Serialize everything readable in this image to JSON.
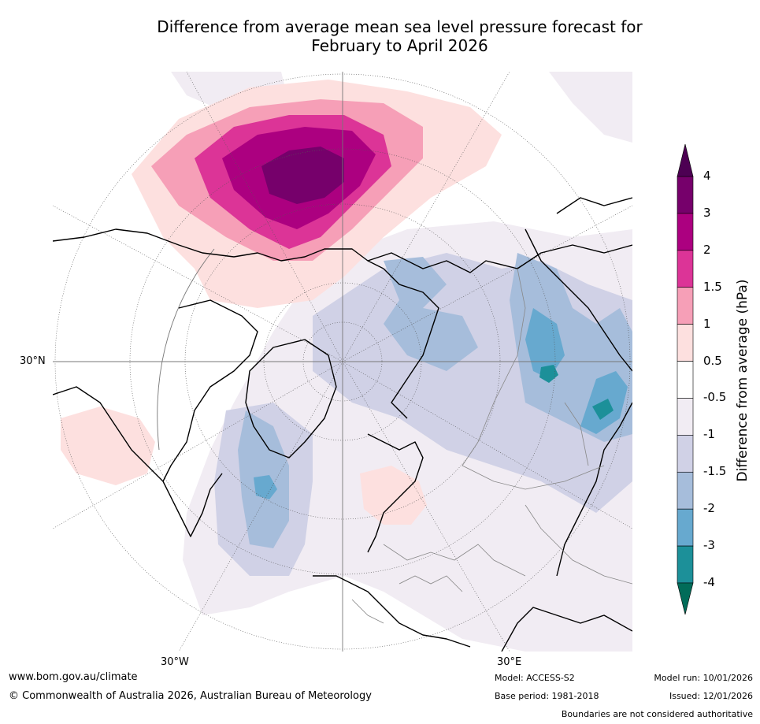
{
  "title": {
    "line1": "Difference from average mean sea level pressure forecast for",
    "line2": "February to April 2026"
  },
  "map": {
    "lat_label": "30°N",
    "lon_west_label": "30°W",
    "lon_east_label": "30°E",
    "background": "#ffffff"
  },
  "colorbar": {
    "title": "Difference from average (hPa)",
    "tick_labels": [
      "4",
      "3",
      "2",
      "1.5",
      "1",
      "0.5",
      "-0.5",
      "-1",
      "-1.5",
      "-2",
      "-3",
      "-4"
    ],
    "bins_top_to_bottom": [
      {
        "range": "3 to 4",
        "color": "#76006b"
      },
      {
        "range": "2 to 3",
        "color": "#ac0080"
      },
      {
        "range": "1.5 to 2",
        "color": "#dc3497"
      },
      {
        "range": "1 to 1.5",
        "color": "#f69fb7"
      },
      {
        "range": "0.5 to 1",
        "color": "#fde0df"
      },
      {
        "range": "-0.5 to 0.5",
        "color": "#ffffff"
      },
      {
        "range": "-1 to -0.5",
        "color": "#f1ecf3"
      },
      {
        "range": "-1.5 to -1",
        "color": "#d0d1e6"
      },
      {
        "range": "-2 to -1.5",
        "color": "#a6bddb"
      },
      {
        "range": "-3 to -2",
        "color": "#67a9cf"
      },
      {
        "range": "-4 to -3",
        "color": "#1c9099"
      }
    ],
    "over_color": "#4d0053",
    "under_color": "#016c59"
  },
  "footer": {
    "url": "www.bom.gov.au/climate",
    "copyright": "© Commonwealth of Australia 2026, Australian Bureau of Meteorology",
    "model": "Model: ACCESS-S2",
    "base_period": "Base period: 1981-2018",
    "model_run": "Model run: 10/01/2026",
    "issued": "Issued: 12/01/2026",
    "disclaimer": "Boundaries are not considered authoritative"
  }
}
